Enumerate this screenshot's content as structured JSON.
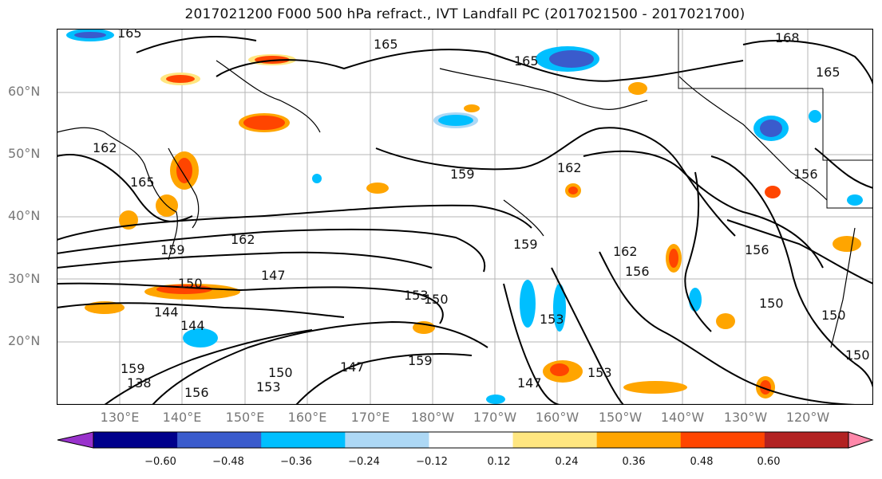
{
  "title": "2017021200 F000 500 hPa refract., IVT Landfall PC (2017021500 - 2017021700)",
  "lat_labels": [
    "60°N",
    "50°N",
    "40°N",
    "30°N",
    "20°N"
  ],
  "lon_labels": [
    "130°E",
    "140°E",
    "150°E",
    "160°E",
    "170°E",
    "180°W",
    "170°W",
    "160°W",
    "150°W",
    "140°W",
    "130°W",
    "120°W"
  ],
  "contour_labels": [
    "165",
    "165",
    "165",
    "168",
    "165",
    "162",
    "162",
    "159",
    "165",
    "162",
    "156",
    "159",
    "162",
    "147",
    "150",
    "144",
    "144",
    "153",
    "159",
    "156",
    "153",
    "150",
    "147",
    "159",
    "150",
    "150",
    "150",
    "153",
    "156",
    "159",
    "147",
    "153",
    "150",
    "138",
    "156"
  ],
  "colorbar": {
    "ticks": [
      "−0.60",
      "−0.48",
      "−0.36",
      "−0.24",
      "−0.12",
      "0.12",
      "0.24",
      "0.36",
      "0.48",
      "0.60"
    ],
    "colors": [
      "#9932CC",
      "#00008B",
      "#3A5BCC",
      "#00BFFF",
      "#ADD8F5",
      "#FFFFFF",
      "#FFE680",
      "#FFA500",
      "#FF4500",
      "#B22222",
      "#FF88AA"
    ]
  }
}
